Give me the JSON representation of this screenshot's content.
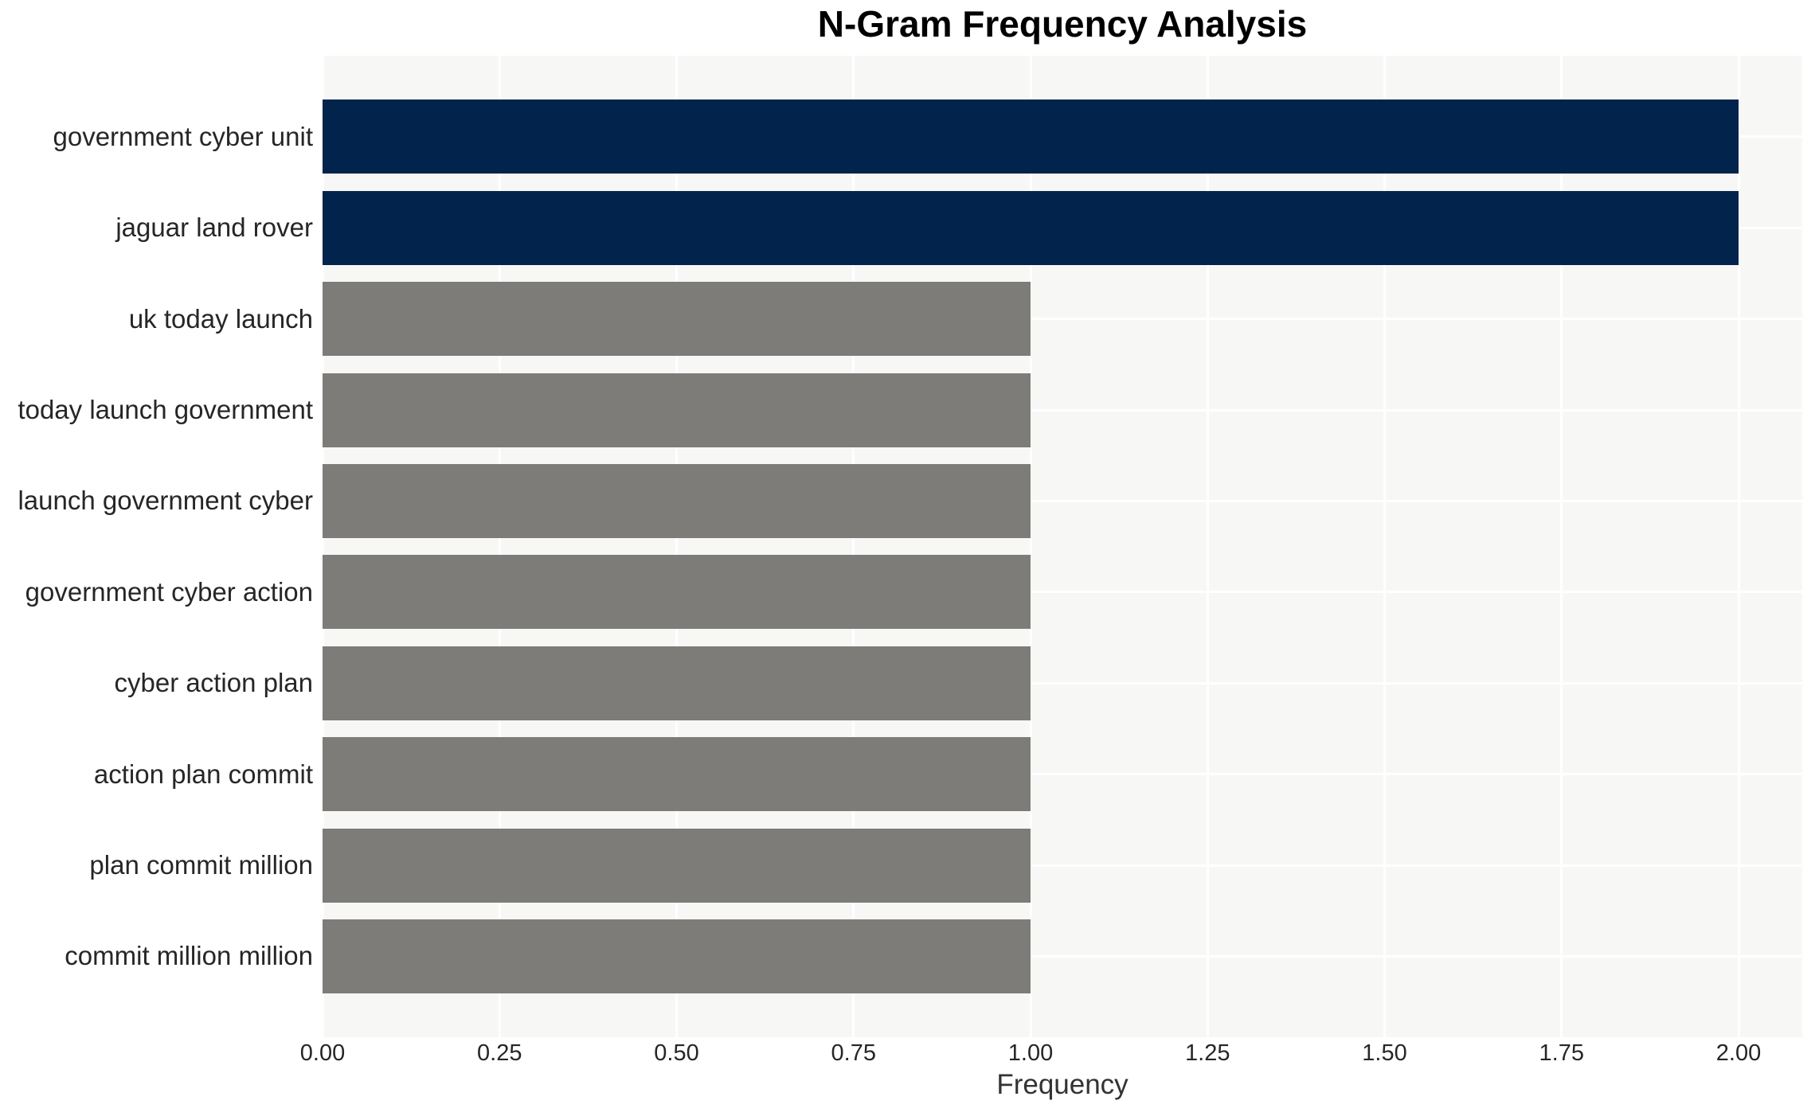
{
  "chart_data": {
    "type": "bar",
    "orientation": "horizontal",
    "title": "N-Gram Frequency Analysis",
    "xlabel": "Frequency",
    "ylabel": "",
    "categories": [
      "government cyber unit",
      "jaguar land rover",
      "uk today launch",
      "today launch government",
      "launch government cyber",
      "government cyber action",
      "cyber action plan",
      "action plan commit",
      "plan commit million",
      "commit million million"
    ],
    "values": [
      2,
      2,
      1,
      1,
      1,
      1,
      1,
      1,
      1,
      1
    ],
    "bar_colors": [
      "#02234c",
      "#02234c",
      "#7d7c78",
      "#7d7c78",
      "#7d7c78",
      "#7d7c78",
      "#7d7c78",
      "#7d7c78",
      "#7d7c78",
      "#7d7c78"
    ],
    "xtick_labels": [
      "0.00",
      "0.25",
      "0.50",
      "0.75",
      "1.00",
      "1.25",
      "1.50",
      "1.75",
      "2.00"
    ],
    "xtick_values": [
      0,
      0.25,
      0.5,
      0.75,
      1.0,
      1.25,
      1.5,
      1.75,
      2.0
    ],
    "xlim": [
      0,
      2.09
    ],
    "grid": true,
    "legend": false,
    "colors": {
      "highlight": "#02234c",
      "default": "#7d7c78",
      "plot_background": "#f7f7f6",
      "gridline": "#ffffff",
      "tick_text": "#262626",
      "title_text": "#000000",
      "axis_label_text": "#333333"
    }
  }
}
